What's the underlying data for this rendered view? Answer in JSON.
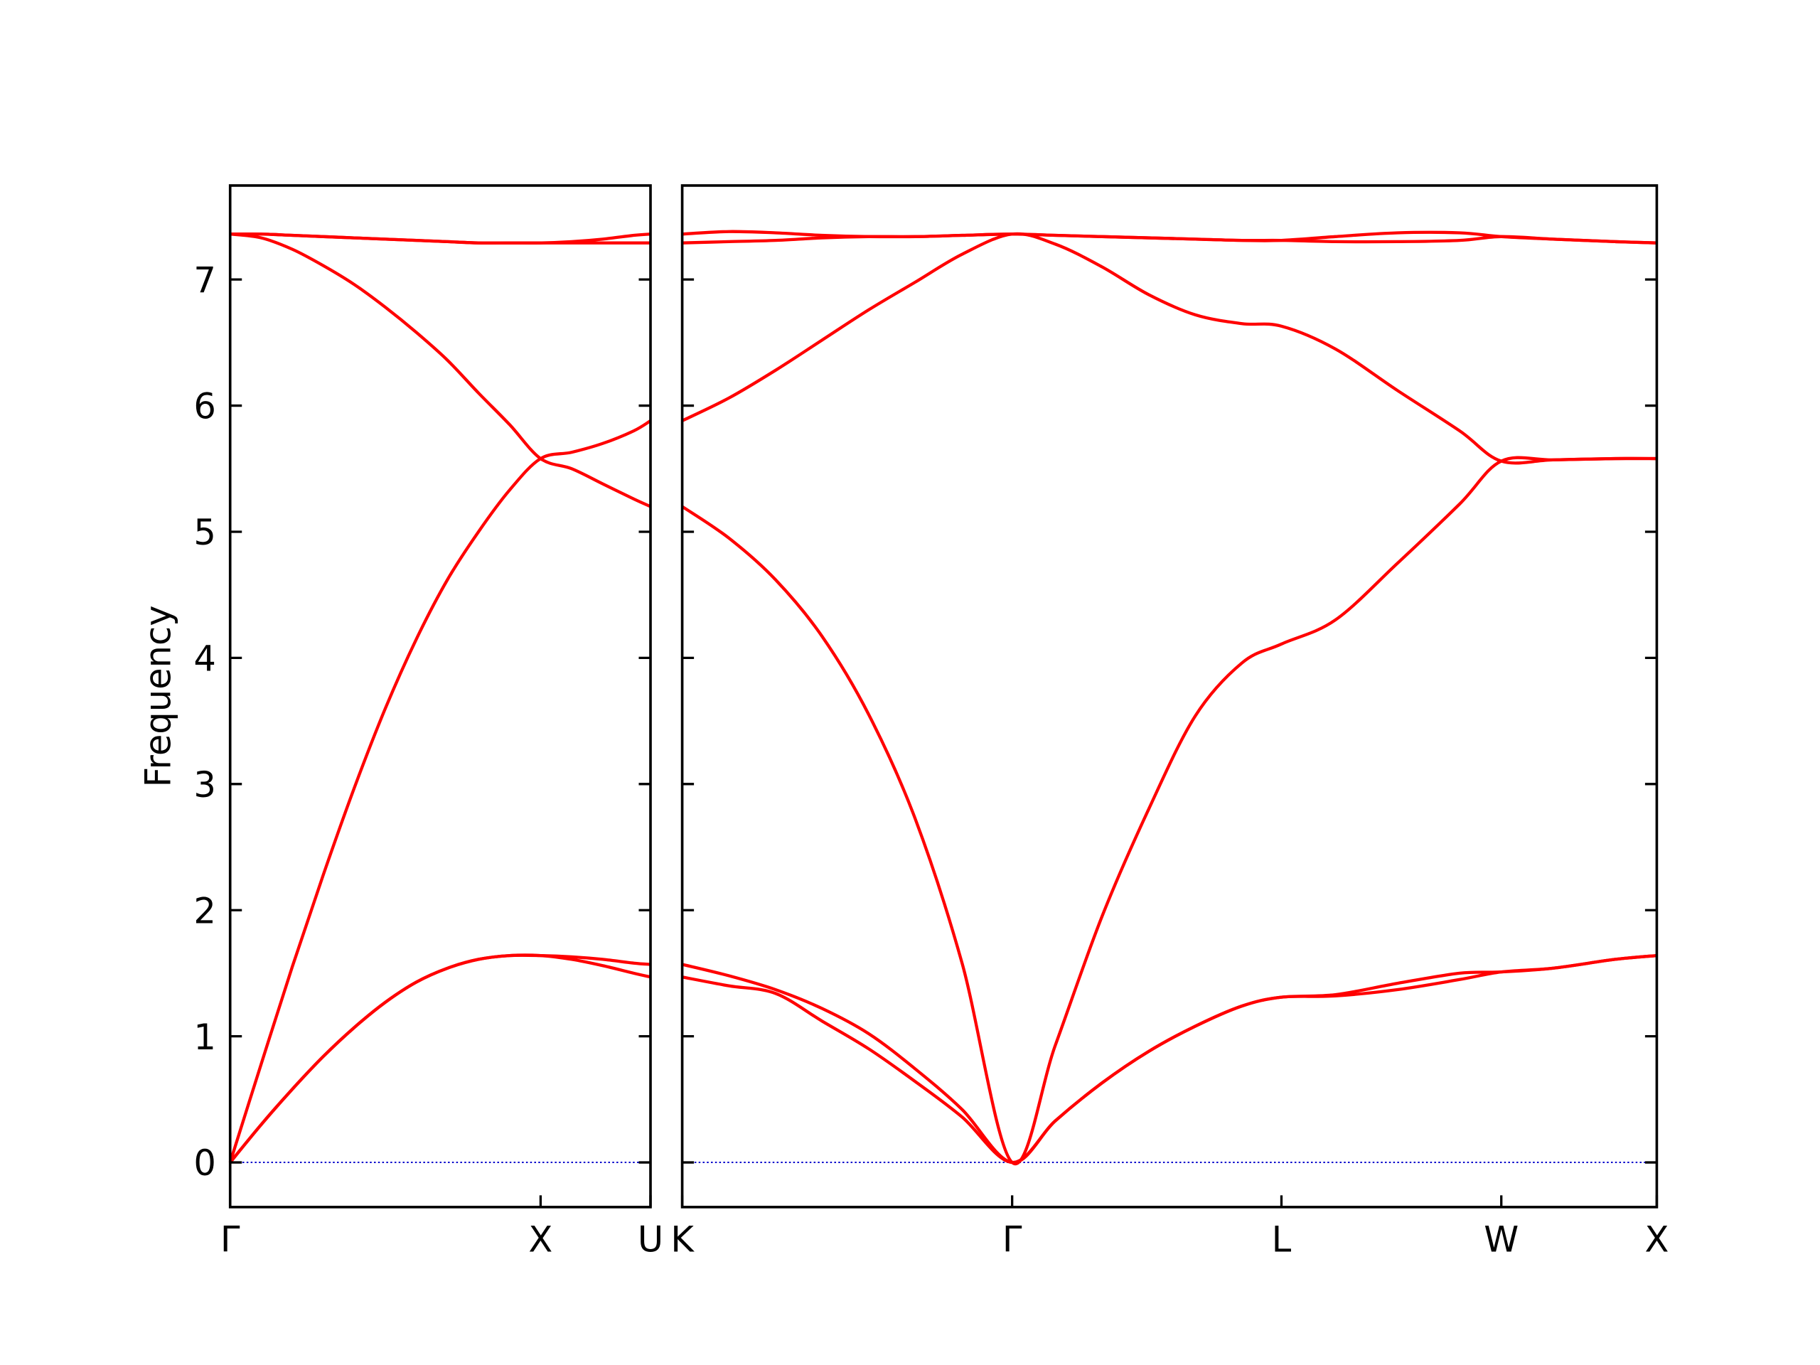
{
  "chart_data": [
    {
      "type": "line",
      "ylabel": "Frequency",
      "x": [
        0,
        0.1,
        0.2,
        0.3,
        0.4,
        0.5,
        0.6,
        0.7,
        0.8,
        0.9,
        1.0,
        1.1,
        1.2,
        1.3,
        1.354
      ],
      "xlim": [
        0,
        1.354
      ],
      "xticks": [
        {
          "value": 0,
          "label": "Γ"
        },
        {
          "value": 1.0,
          "label": "X"
        },
        {
          "value": 1.354,
          "label": "U"
        }
      ],
      "ylim": [
        -0.354,
        7.745
      ],
      "yticks": [
        0,
        1,
        2,
        3,
        4,
        5,
        6,
        7
      ],
      "ytick_labels": true,
      "zero_line_color": "#0000cc",
      "series": [
        {
          "color": "#ff0000",
          "values": [
            0,
            0.3,
            0.58,
            0.84,
            1.07,
            1.27,
            1.43,
            1.54,
            1.61,
            1.64,
            1.64,
            1.61,
            1.56,
            1.5,
            1.47
          ]
        },
        {
          "color": "#ff0000",
          "values": [
            0,
            0.3,
            0.58,
            0.84,
            1.07,
            1.27,
            1.43,
            1.54,
            1.61,
            1.64,
            1.64,
            1.63,
            1.61,
            1.58,
            1.57
          ]
        },
        {
          "color": "#ff0000",
          "values": [
            0,
            0.78,
            1.55,
            2.28,
            2.97,
            3.6,
            4.15,
            4.62,
            5.0,
            5.33,
            5.58,
            5.63,
            5.7,
            5.8,
            5.88
          ]
        },
        {
          "color": "#ff0000",
          "values": [
            7.36,
            7.33,
            7.24,
            7.11,
            6.96,
            6.78,
            6.58,
            6.36,
            6.1,
            5.85,
            5.58,
            5.5,
            5.38,
            5.26,
            5.2
          ]
        },
        {
          "color": "#ff0000",
          "values": [
            7.36,
            7.36,
            7.35,
            7.34,
            7.33,
            7.32,
            7.31,
            7.3,
            7.29,
            7.29,
            7.29,
            7.3,
            7.32,
            7.35,
            7.36
          ]
        },
        {
          "color": "#ff0000",
          "values": [
            7.36,
            7.36,
            7.35,
            7.34,
            7.33,
            7.32,
            7.31,
            7.3,
            7.29,
            7.29,
            7.29,
            7.29,
            7.29,
            7.29,
            7.29
          ]
        }
      ]
    },
    {
      "type": "line",
      "x": [
        0,
        0.15,
        0.3,
        0.45,
        0.6,
        0.75,
        0.9,
        1.061,
        1.2,
        1.35,
        1.5,
        1.65,
        1.8,
        1.927,
        2.1,
        2.3,
        2.5,
        2.634,
        2.8,
        3.0,
        3.134
      ],
      "xlim": [
        0,
        3.134
      ],
      "xticks": [
        {
          "value": 0,
          "label": "K"
        },
        {
          "value": 1.061,
          "label": "Γ"
        },
        {
          "value": 1.927,
          "label": "L"
        },
        {
          "value": 2.634,
          "label": "W"
        },
        {
          "value": 3.134,
          "label": "X"
        }
      ],
      "ylim": [
        -0.354,
        7.745
      ],
      "yticks": [
        0,
        1,
        2,
        3,
        4,
        5,
        6,
        7
      ],
      "ytick_labels": false,
      "zero_line_color": "#0000cc",
      "series": [
        {
          "color": "#ff0000",
          "values": [
            1.47,
            1.4,
            1.34,
            1.12,
            0.9,
            0.64,
            0.36,
            0,
            0.33,
            0.63,
            0.88,
            1.08,
            1.24,
            1.31,
            1.32,
            1.37,
            1.45,
            1.51,
            1.54,
            1.61,
            1.64
          ]
        },
        {
          "color": "#ff0000",
          "values": [
            1.57,
            1.48,
            1.37,
            1.22,
            1.02,
            0.74,
            0.42,
            0,
            0.33,
            0.63,
            0.88,
            1.08,
            1.24,
            1.31,
            1.33,
            1.42,
            1.5,
            1.51,
            1.54,
            1.61,
            1.64
          ]
        },
        {
          "color": "#ff0000",
          "values": [
            5.2,
            4.95,
            4.62,
            4.17,
            3.55,
            2.72,
            1.58,
            0,
            0.93,
            1.95,
            2.8,
            3.54,
            3.96,
            4.11,
            4.3,
            4.75,
            5.22,
            5.56,
            5.57,
            5.58,
            5.58
          ]
        },
        {
          "color": "#ff0000",
          "values": [
            5.88,
            6.06,
            6.28,
            6.52,
            6.76,
            6.98,
            7.2,
            7.36,
            7.28,
            7.1,
            6.88,
            6.72,
            6.65,
            6.63,
            6.45,
            6.12,
            5.8,
            5.56,
            5.57,
            5.58,
            5.58
          ]
        },
        {
          "color": "#ff0000",
          "values": [
            7.36,
            7.38,
            7.37,
            7.35,
            7.34,
            7.34,
            7.35,
            7.36,
            7.35,
            7.34,
            7.33,
            7.32,
            7.31,
            7.31,
            7.34,
            7.37,
            7.37,
            7.34,
            7.32,
            7.3,
            7.29
          ]
        },
        {
          "color": "#ff0000",
          "values": [
            7.29,
            7.3,
            7.31,
            7.33,
            7.34,
            7.34,
            7.35,
            7.36,
            7.35,
            7.34,
            7.33,
            7.32,
            7.31,
            7.31,
            7.3,
            7.3,
            7.31,
            7.34,
            7.32,
            7.3,
            7.29
          ]
        }
      ]
    }
  ]
}
